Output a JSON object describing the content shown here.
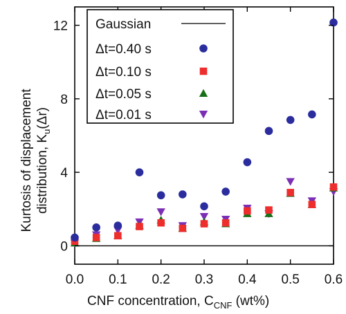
{
  "chart_data": {
    "type": "scatter",
    "xlabel": "CNF concentration, C",
    "xlabel_sub": "CNF",
    "xlabel_unit": " (wt%)",
    "ylabel_line1": "Kurtosis of displacement",
    "ylabel_line2": "distribution, K",
    "ylabel_sub": "u",
    "ylabel_tail": "(Δr)",
    "xlim": [
      0.0,
      0.6
    ],
    "ylim": [
      -1.0,
      13.0
    ],
    "xticks": [
      "0.0",
      "0.1",
      "0.2",
      "0.3",
      "0.4",
      "0.5",
      "0.6"
    ],
    "xtick_values": [
      0.0,
      0.1,
      0.2,
      0.3,
      0.4,
      0.5,
      0.6
    ],
    "yticks": [
      "0",
      "4",
      "8",
      "12"
    ],
    "ytick_values": [
      0,
      4,
      8,
      12
    ],
    "legend_position": "top-left",
    "reference_line": {
      "name": "Gaussian",
      "y": 0,
      "color": "#000000"
    },
    "x": [
      0.0,
      0.05,
      0.1,
      0.15,
      0.2,
      0.25,
      0.3,
      0.35,
      0.4,
      0.45,
      0.5,
      0.55,
      0.6
    ],
    "series": [
      {
        "name": "Δt=0.40 s",
        "marker": "circle",
        "color": "#2b2d9e",
        "values": [
          0.45,
          1.0,
          1.1,
          4.0,
          2.75,
          2.8,
          2.15,
          2.95,
          4.55,
          6.25,
          6.85,
          7.15,
          12.15
        ]
      },
      {
        "name": "Δt=0.10 s",
        "marker": "square",
        "color": "#ee2d2d",
        "values": [
          0.25,
          0.45,
          0.55,
          1.05,
          1.25,
          0.95,
          1.2,
          1.25,
          1.9,
          1.95,
          2.9,
          2.25,
          3.2
        ]
      },
      {
        "name": "Δt=0.05 s",
        "marker": "triangle-up",
        "color": "#1a6f1a",
        "values": [
          0.15,
          0.4,
          0.55,
          1.1,
          1.4,
          0.95,
          1.3,
          1.2,
          1.75,
          1.75,
          2.85,
          2.25,
          3.15
        ]
      },
      {
        "name": "Δt=0.01 s",
        "marker": "triangle-down",
        "color": "#7b2fb5",
        "values": [
          0.15,
          0.6,
          0.85,
          1.3,
          1.85,
          1.1,
          1.6,
          1.45,
          2.05,
          1.75,
          3.5,
          2.45,
          2.95
        ]
      }
    ]
  }
}
